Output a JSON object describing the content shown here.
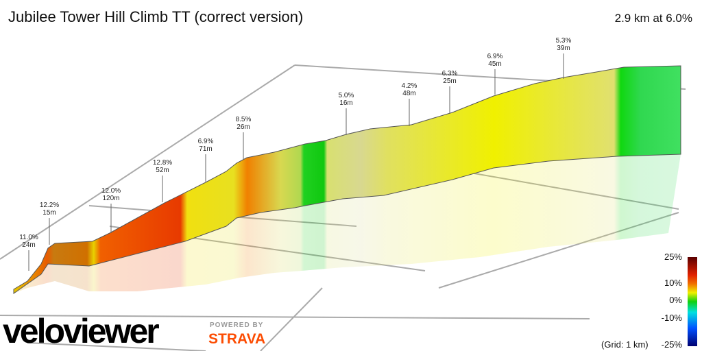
{
  "header": {
    "title": "Jubilee Tower Hill Climb TT (correct version)",
    "summary": "2.9 km at 6.0%"
  },
  "annotations": [
    {
      "grade": "11.0%",
      "length": "24m"
    },
    {
      "grade": "12.2%",
      "length": "15m"
    },
    {
      "grade": "12.0%",
      "length": "120m"
    },
    {
      "grade": "12.8%",
      "length": "52m"
    },
    {
      "grade": "6.9%",
      "length": "71m"
    },
    {
      "grade": "8.5%",
      "length": "26m"
    },
    {
      "grade": "5.0%",
      "length": "16m"
    },
    {
      "grade": "4.2%",
      "length": "48m"
    },
    {
      "grade": "6.3%",
      "length": "25m"
    },
    {
      "grade": "6.9%",
      "length": "45m"
    },
    {
      "grade": "5.3%",
      "length": "39m"
    }
  ],
  "legend": {
    "labels": [
      "25%",
      "10%",
      "0%",
      "-10%",
      "-25%"
    ],
    "grid_note": "(Grid: 1 km)"
  },
  "branding": {
    "logo": "veloviewer",
    "powered_by": "POWERED BY",
    "strava": "STRAVA"
  }
}
